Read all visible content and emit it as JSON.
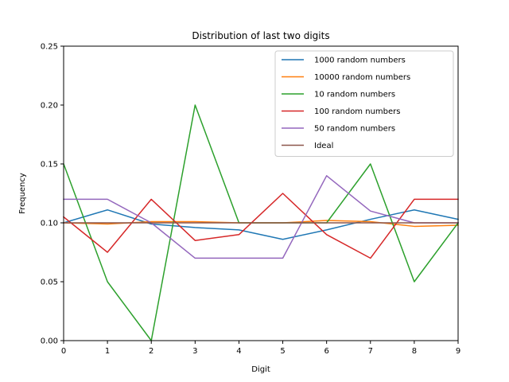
{
  "chart_data": {
    "type": "line",
    "title": "Distribution of last two digits",
    "xlabel": "Digit",
    "ylabel": "Frequency",
    "x": [
      0,
      1,
      2,
      3,
      4,
      5,
      6,
      7,
      8,
      9
    ],
    "xlim": [
      0,
      9
    ],
    "ylim": [
      0,
      0.25
    ],
    "xticks": [
      "0",
      "1",
      "2",
      "3",
      "4",
      "5",
      "6",
      "7",
      "8",
      "9"
    ],
    "yticks": [
      "0.00",
      "0.05",
      "0.10",
      "0.15",
      "0.20",
      "0.25"
    ],
    "grid": false,
    "legend_position": "top-right",
    "series": [
      {
        "name": "1000 random numbers",
        "color": "#1f77b4",
        "values": [
          0.1,
          0.111,
          0.099,
          0.096,
          0.094,
          0.086,
          0.094,
          0.103,
          0.111,
          0.103
        ]
      },
      {
        "name": "10000 random numbers",
        "color": "#ff7f0e",
        "values": [
          0.1,
          0.099,
          0.101,
          0.101,
          0.1,
          0.1,
          0.102,
          0.101,
          0.097,
          0.098
        ]
      },
      {
        "name": "10 random numbers",
        "color": "#2ca02c",
        "values": [
          0.15,
          0.05,
          0.0,
          0.2,
          0.1,
          0.1,
          0.1,
          0.15,
          0.05,
          0.1
        ]
      },
      {
        "name": "100 random numbers",
        "color": "#d62728",
        "values": [
          0.105,
          0.075,
          0.12,
          0.085,
          0.09,
          0.125,
          0.09,
          0.07,
          0.12,
          0.12
        ]
      },
      {
        "name": "50 random numbers",
        "color": "#9467bd",
        "values": [
          0.12,
          0.12,
          0.1,
          0.07,
          0.07,
          0.07,
          0.14,
          0.11,
          0.1,
          0.1
        ]
      },
      {
        "name": "Ideal",
        "color": "#8c564b",
        "values": [
          0.1,
          0.1,
          0.1,
          0.1,
          0.1,
          0.1,
          0.1,
          0.1,
          0.1,
          0.1
        ]
      }
    ]
  }
}
